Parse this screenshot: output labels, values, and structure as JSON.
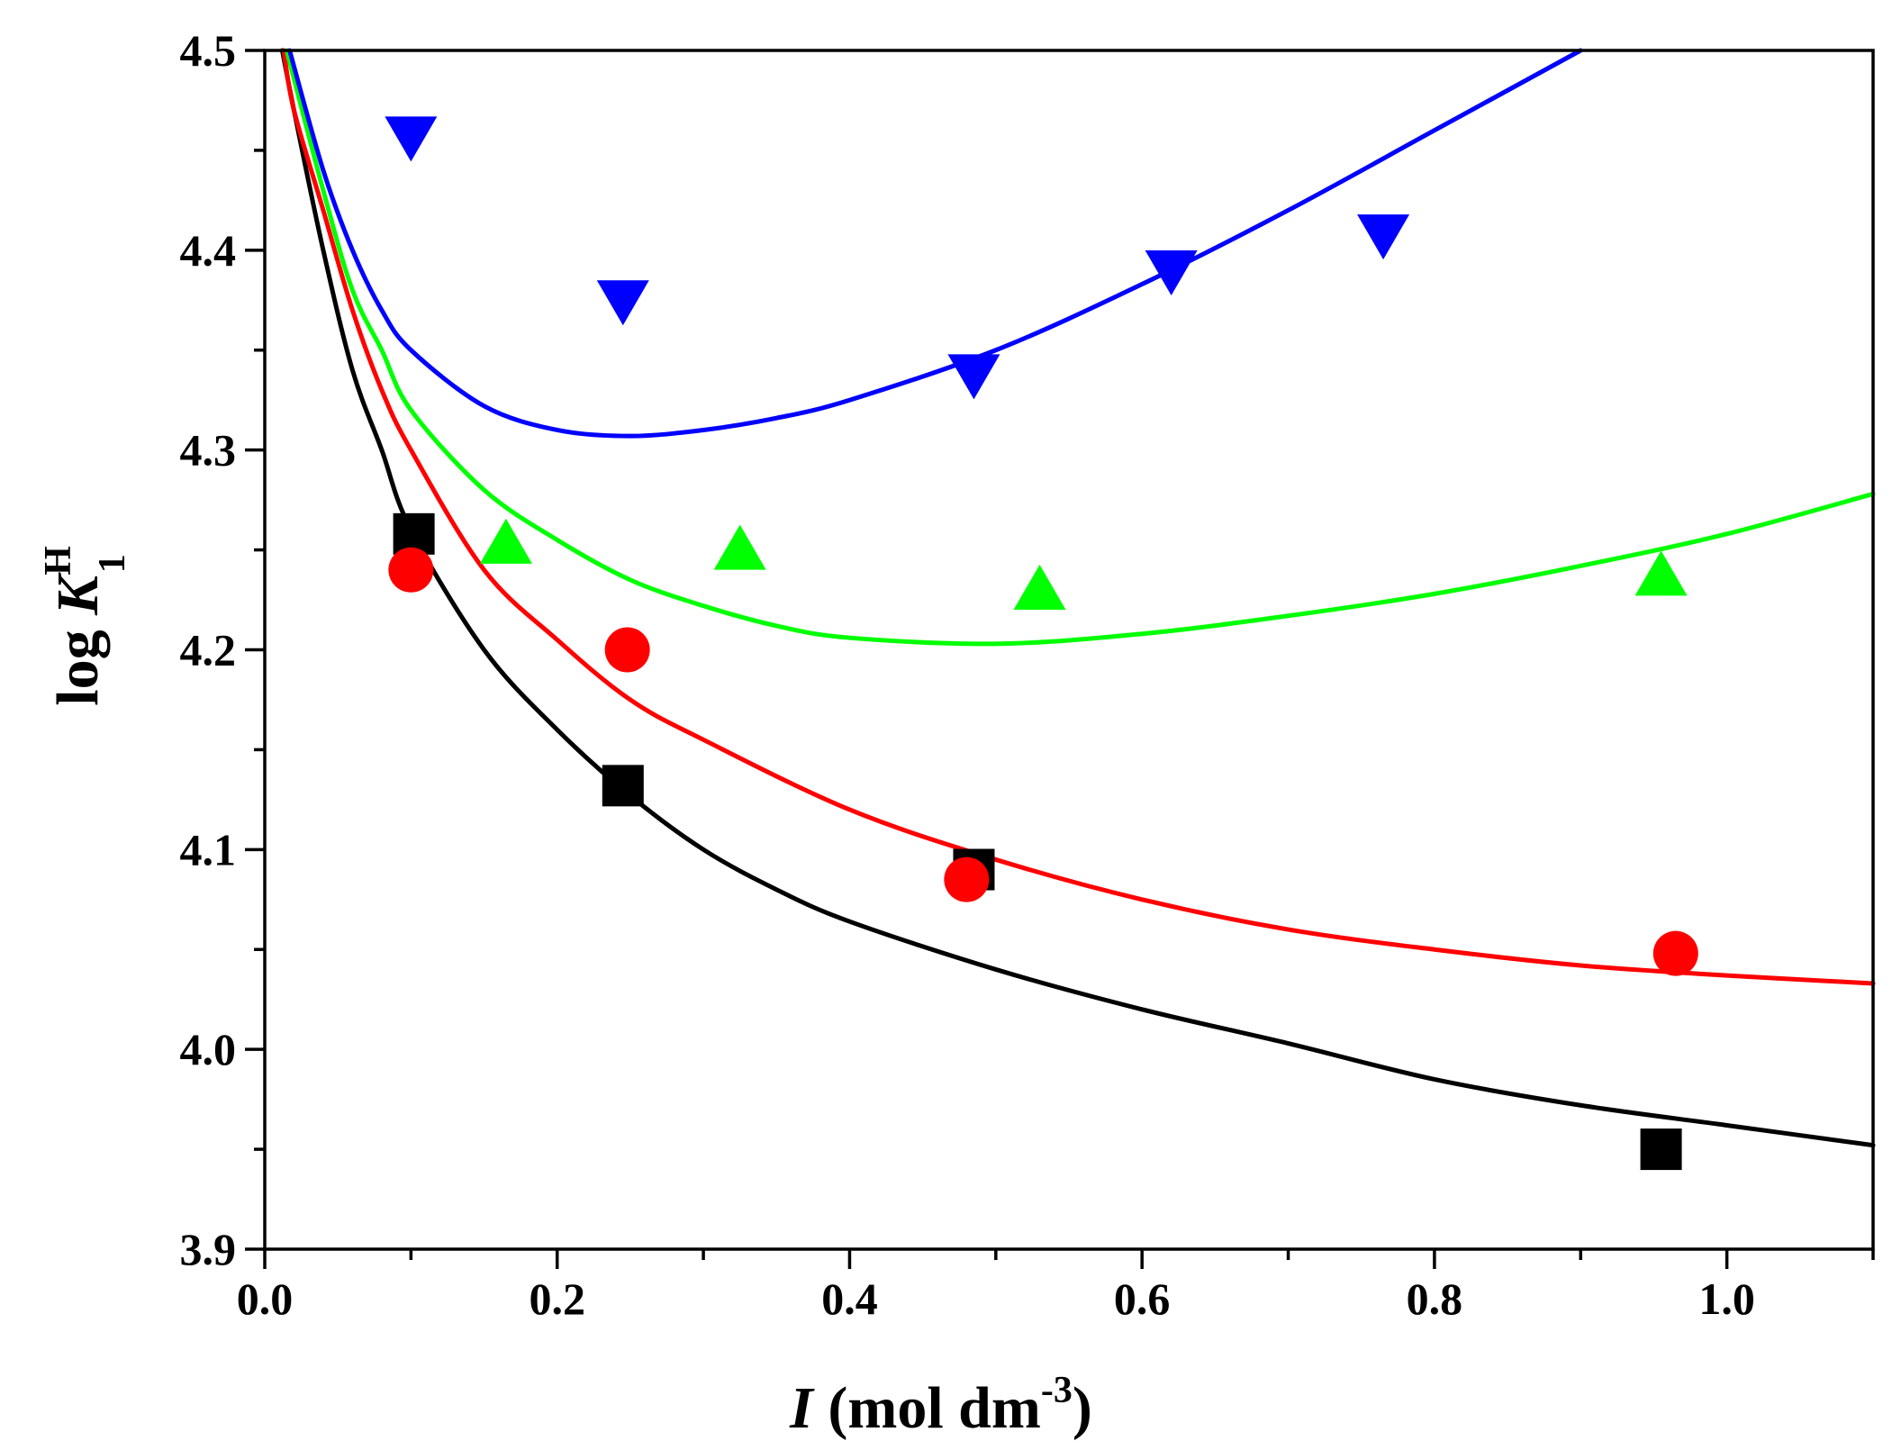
{
  "chart_data": {
    "type": "scatter",
    "xlabel": {
      "italic": "I",
      "rest": " (mol dm",
      "sup": "-3",
      "close": ")"
    },
    "ylabel": {
      "text": "log ",
      "italic": "K",
      "sup": "H",
      "sub": "1"
    },
    "xlim": [
      0.0,
      1.1
    ],
    "ylim": [
      3.9,
      4.5
    ],
    "x_ticks": [
      "0.0",
      "0.2",
      "0.4",
      "0.6",
      "0.8",
      "1.0"
    ],
    "y_ticks": [
      "3.9",
      "4.0",
      "4.1",
      "4.2",
      "4.3",
      "4.4",
      "4.5"
    ],
    "grid": false,
    "legend": "none",
    "series": [
      {
        "marker": "square",
        "color": "#000000",
        "points": [
          [
            0.102,
            4.258
          ],
          [
            0.245,
            4.132
          ],
          [
            0.485,
            4.09
          ],
          [
            0.955,
            3.95
          ]
        ],
        "fit_curve": [
          [
            0.012,
            4.5
          ],
          [
            0.02,
            4.47
          ],
          [
            0.04,
            4.4
          ],
          [
            0.06,
            4.34
          ],
          [
            0.08,
            4.3
          ],
          [
            0.1,
            4.26
          ],
          [
            0.15,
            4.2
          ],
          [
            0.2,
            4.16
          ],
          [
            0.25,
            4.127
          ],
          [
            0.3,
            4.1
          ],
          [
            0.35,
            4.08
          ],
          [
            0.4,
            4.064
          ],
          [
            0.5,
            4.04
          ],
          [
            0.6,
            4.02
          ],
          [
            0.7,
            4.003
          ],
          [
            0.8,
            3.985
          ],
          [
            0.9,
            3.972
          ],
          [
            1.0,
            3.962
          ],
          [
            1.1,
            3.952
          ]
        ]
      },
      {
        "marker": "circle",
        "color": "#ff0000",
        "points": [
          [
            0.1,
            4.24
          ],
          [
            0.248,
            4.2
          ],
          [
            0.48,
            4.085
          ],
          [
            0.965,
            4.048
          ]
        ],
        "fit_curve": [
          [
            0.013,
            4.5
          ],
          [
            0.02,
            4.47
          ],
          [
            0.04,
            4.42
          ],
          [
            0.06,
            4.37
          ],
          [
            0.08,
            4.33
          ],
          [
            0.1,
            4.3
          ],
          [
            0.15,
            4.24
          ],
          [
            0.2,
            4.205
          ],
          [
            0.25,
            4.175
          ],
          [
            0.3,
            4.155
          ],
          [
            0.4,
            4.12
          ],
          [
            0.5,
            4.095
          ],
          [
            0.6,
            4.075
          ],
          [
            0.7,
            4.06
          ],
          [
            0.8,
            4.05
          ],
          [
            0.9,
            4.042
          ],
          [
            1.0,
            4.037
          ],
          [
            1.1,
            4.033
          ]
        ]
      },
      {
        "marker": "triangle-up",
        "color": "#00ff00",
        "points": [
          [
            0.165,
            4.253
          ],
          [
            0.325,
            4.25
          ],
          [
            0.53,
            4.23
          ],
          [
            0.955,
            4.237
          ]
        ],
        "fit_curve": [
          [
            0.015,
            4.5
          ],
          [
            0.04,
            4.43
          ],
          [
            0.06,
            4.38
          ],
          [
            0.08,
            4.35
          ],
          [
            0.1,
            4.32
          ],
          [
            0.15,
            4.28
          ],
          [
            0.2,
            4.255
          ],
          [
            0.25,
            4.235
          ],
          [
            0.3,
            4.222
          ],
          [
            0.35,
            4.212
          ],
          [
            0.4,
            4.206
          ],
          [
            0.5,
            4.203
          ],
          [
            0.6,
            4.208
          ],
          [
            0.7,
            4.217
          ],
          [
            0.8,
            4.228
          ],
          [
            0.9,
            4.242
          ],
          [
            1.0,
            4.258
          ],
          [
            1.1,
            4.278
          ]
        ]
      },
      {
        "marker": "triangle-down",
        "color": "#0000ff",
        "points": [
          [
            0.1,
            4.457
          ],
          [
            0.245,
            4.375
          ],
          [
            0.485,
            4.338
          ],
          [
            0.62,
            4.39
          ],
          [
            0.765,
            4.408
          ]
        ],
        "fit_curve": [
          [
            0.017,
            4.5
          ],
          [
            0.04,
            4.44
          ],
          [
            0.06,
            4.4
          ],
          [
            0.08,
            4.37
          ],
          [
            0.1,
            4.35
          ],
          [
            0.15,
            4.322
          ],
          [
            0.2,
            4.31
          ],
          [
            0.25,
            4.307
          ],
          [
            0.3,
            4.31
          ],
          [
            0.35,
            4.316
          ],
          [
            0.4,
            4.325
          ],
          [
            0.5,
            4.35
          ],
          [
            0.6,
            4.383
          ],
          [
            0.7,
            4.42
          ],
          [
            0.8,
            4.46
          ],
          [
            0.9,
            4.5
          ]
        ]
      }
    ]
  }
}
